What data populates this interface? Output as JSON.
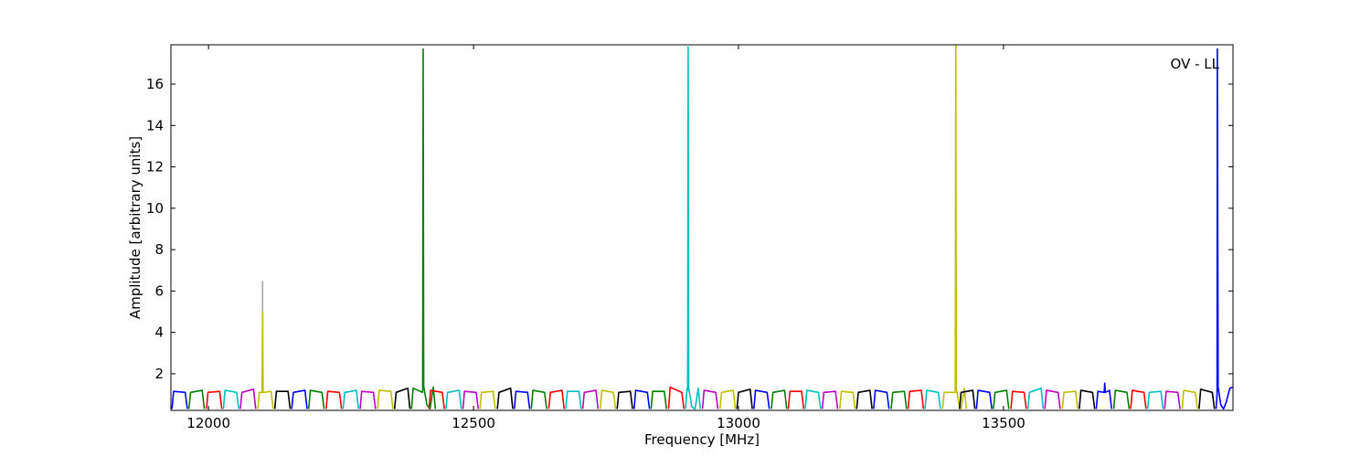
{
  "chart_data": {
    "type": "line",
    "xlabel": "Frequency [MHz]",
    "ylabel": "Amplitude [arbitrary units]",
    "annotation": "OV - LL",
    "xlim": [
      11929,
      13933
    ],
    "ylim": [
      0.23,
      17.9
    ],
    "xticks": [
      12000,
      12500,
      13000,
      13500
    ],
    "yticks": [
      2,
      4,
      6,
      8,
      10,
      12,
      14,
      16
    ],
    "series": [
      {
        "color": "#aaaaaa",
        "x": [
          12102,
          12102
        ],
        "values": [
          1.1,
          6.5
        ]
      },
      {
        "color": "#0000ff",
        "x": [
          11931,
          11934,
          11956,
          11960
        ],
        "values": [
          0.3,
          1.15,
          1.1,
          0.3
        ]
      },
      {
        "color": "#008000",
        "x": [
          11963,
          11966,
          11988,
          11992
        ],
        "values": [
          0.3,
          1.1,
          1.2,
          0.3
        ]
      },
      {
        "color": "#ff0000",
        "x": [
          11996,
          11999,
          12021,
          12025
        ],
        "values": [
          0.3,
          1.1,
          1.15,
          0.3
        ]
      },
      {
        "color": "#00bfbf",
        "x": [
          12028,
          12031,
          12053,
          12057
        ],
        "values": [
          0.3,
          1.2,
          1.1,
          0.3
        ]
      },
      {
        "color": "#bf00bf",
        "x": [
          12060,
          12063,
          12085,
          12089
        ],
        "values": [
          0.3,
          1.1,
          1.25,
          0.3
        ]
      },
      {
        "color": "#bfbf00",
        "x": [
          12093,
          12096,
          12101,
          12102,
          12103,
          12118,
          12122
        ],
        "values": [
          0.3,
          1.1,
          1.1,
          5.0,
          1.1,
          1.15,
          0.3
        ]
      },
      {
        "color": "#000000",
        "x": [
          12125,
          12128,
          12150,
          12154
        ],
        "values": [
          0.3,
          1.15,
          1.15,
          0.3
        ]
      },
      {
        "color": "#0000ff",
        "x": [
          12157,
          12160,
          12182,
          12186
        ],
        "values": [
          0.3,
          1.1,
          1.2,
          0.3
        ]
      },
      {
        "color": "#008000",
        "x": [
          12189,
          12192,
          12214,
          12218
        ],
        "values": [
          0.3,
          1.2,
          1.1,
          0.3
        ]
      },
      {
        "color": "#ff0000",
        "x": [
          12222,
          12225,
          12247,
          12251
        ],
        "values": [
          0.3,
          1.15,
          1.1,
          0.3
        ]
      },
      {
        "color": "#00bfbf",
        "x": [
          12254,
          12257,
          12279,
          12283
        ],
        "values": [
          0.3,
          1.1,
          1.2,
          0.3
        ]
      },
      {
        "color": "#bf00bf",
        "x": [
          12286,
          12289,
          12311,
          12315
        ],
        "values": [
          0.3,
          1.15,
          1.1,
          0.3
        ]
      },
      {
        "color": "#bfbf00",
        "x": [
          12319,
          12322,
          12344,
          12348
        ],
        "values": [
          0.3,
          1.2,
          1.15,
          0.3
        ]
      },
      {
        "color": "#000000",
        "x": [
          12351,
          12354,
          12376,
          12380
        ],
        "values": [
          0.3,
          1.1,
          1.3,
          0.3
        ]
      },
      {
        "color": "#008000",
        "x": [
          12383,
          12386,
          12404,
          12405,
          12406,
          12412,
          12418,
          12424,
          12428
        ],
        "values": [
          0.3,
          1.3,
          1.1,
          17.7,
          1.4,
          0.5,
          0.3,
          1.35,
          0.3
        ]
      },
      {
        "color": "#ff0000",
        "x": [
          12416,
          12419,
          12441,
          12445
        ],
        "values": [
          0.3,
          1.2,
          1.1,
          0.3
        ]
      },
      {
        "color": "#00bfbf",
        "x": [
          12448,
          12451,
          12473,
          12477
        ],
        "values": [
          0.3,
          1.1,
          1.2,
          0.3
        ]
      },
      {
        "color": "#bf00bf",
        "x": [
          12480,
          12483,
          12505,
          12509
        ],
        "values": [
          0.3,
          1.15,
          1.1,
          0.3
        ]
      },
      {
        "color": "#bfbf00",
        "x": [
          12512,
          12515,
          12537,
          12541
        ],
        "values": [
          0.3,
          1.1,
          1.15,
          0.3
        ]
      },
      {
        "color": "#000000",
        "x": [
          12545,
          12548,
          12570,
          12574
        ],
        "values": [
          0.3,
          1.1,
          1.3,
          0.3
        ]
      },
      {
        "color": "#0000ff",
        "x": [
          12577,
          12580,
          12602,
          12606
        ],
        "values": [
          0.3,
          1.15,
          1.1,
          0.3
        ]
      },
      {
        "color": "#008000",
        "x": [
          12609,
          12612,
          12634,
          12638
        ],
        "values": [
          0.3,
          1.2,
          1.1,
          0.3
        ]
      },
      {
        "color": "#ff0000",
        "x": [
          12642,
          12645,
          12667,
          12671
        ],
        "values": [
          0.3,
          1.1,
          1.2,
          0.3
        ]
      },
      {
        "color": "#00bfbf",
        "x": [
          12674,
          12677,
          12699,
          12703
        ],
        "values": [
          0.3,
          1.15,
          1.15,
          0.3
        ]
      },
      {
        "color": "#bf00bf",
        "x": [
          12706,
          12709,
          12731,
          12735
        ],
        "values": [
          0.3,
          1.1,
          1.2,
          0.3
        ]
      },
      {
        "color": "#bfbf00",
        "x": [
          12739,
          12742,
          12764,
          12768
        ],
        "values": [
          0.3,
          1.2,
          1.1,
          0.3
        ]
      },
      {
        "color": "#000000",
        "x": [
          12771,
          12774,
          12796,
          12800
        ],
        "values": [
          0.3,
          1.1,
          1.15,
          0.3
        ]
      },
      {
        "color": "#0000ff",
        "x": [
          12803,
          12806,
          12828,
          12832
        ],
        "values": [
          0.3,
          1.2,
          1.1,
          0.3
        ]
      },
      {
        "color": "#008000",
        "x": [
          12835,
          12838,
          12860,
          12864
        ],
        "values": [
          0.3,
          1.15,
          1.15,
          0.3
        ]
      },
      {
        "color": "#ff0000",
        "x": [
          12868,
          12871,
          12893,
          12897
        ],
        "values": [
          0.3,
          1.35,
          1.1,
          0.3
        ]
      },
      {
        "color": "#00bfbf",
        "x": [
          12900,
          12903,
          12904,
          12905,
          12906,
          12912,
          12918,
          12924,
          12928
        ],
        "values": [
          0.3,
          1.3,
          1.2,
          17.8,
          1.3,
          0.4,
          0.3,
          1.3,
          0.3
        ]
      },
      {
        "color": "#bf00bf",
        "x": [
          12932,
          12935,
          12957,
          12961
        ],
        "values": [
          0.3,
          1.2,
          1.1,
          0.3
        ]
      },
      {
        "color": "#bfbf00",
        "x": [
          12965,
          12968,
          12990,
          12994
        ],
        "values": [
          0.3,
          1.1,
          1.2,
          0.3
        ]
      },
      {
        "color": "#000000",
        "x": [
          12997,
          13000,
          13022,
          13026
        ],
        "values": [
          0.3,
          1.1,
          1.25,
          0.3
        ]
      },
      {
        "color": "#0000ff",
        "x": [
          13029,
          13032,
          13054,
          13058
        ],
        "values": [
          0.3,
          1.2,
          1.1,
          0.3
        ]
      },
      {
        "color": "#008000",
        "x": [
          13062,
          13065,
          13087,
          13091
        ],
        "values": [
          0.3,
          1.1,
          1.2,
          0.3
        ]
      },
      {
        "color": "#ff0000",
        "x": [
          13094,
          13097,
          13119,
          13123
        ],
        "values": [
          0.3,
          1.15,
          1.15,
          0.3
        ]
      },
      {
        "color": "#00bfbf",
        "x": [
          13126,
          13129,
          13151,
          13155
        ],
        "values": [
          0.3,
          1.2,
          1.1,
          0.3
        ]
      },
      {
        "color": "#bf00bf",
        "x": [
          13158,
          13161,
          13183,
          13187
        ],
        "values": [
          0.3,
          1.1,
          1.15,
          0.3
        ]
      },
      {
        "color": "#bfbf00",
        "x": [
          13191,
          13194,
          13216,
          13220
        ],
        "values": [
          0.3,
          1.15,
          1.1,
          0.3
        ]
      },
      {
        "color": "#000000",
        "x": [
          13223,
          13226,
          13248,
          13252
        ],
        "values": [
          0.3,
          1.1,
          1.2,
          0.3
        ]
      },
      {
        "color": "#0000ff",
        "x": [
          13255,
          13258,
          13280,
          13284
        ],
        "values": [
          0.3,
          1.2,
          1.1,
          0.3
        ]
      },
      {
        "color": "#008000",
        "x": [
          13288,
          13291,
          13313,
          13317
        ],
        "values": [
          0.3,
          1.1,
          1.15,
          0.3
        ]
      },
      {
        "color": "#ff0000",
        "x": [
          13320,
          13323,
          13345,
          13349
        ],
        "values": [
          0.3,
          1.15,
          1.2,
          0.3
        ]
      },
      {
        "color": "#00bfbf",
        "x": [
          13352,
          13355,
          13377,
          13381
        ],
        "values": [
          0.3,
          1.2,
          1.1,
          0.3
        ]
      },
      {
        "color": "#bfbf00",
        "x": [
          13385,
          13388,
          13409,
          13410,
          13411,
          13416,
          13420,
          13426,
          13430
        ],
        "values": [
          0.3,
          1.1,
          1.1,
          17.9,
          1.3,
          0.5,
          0.3,
          1.3,
          0.3
        ]
      },
      {
        "color": "#000000",
        "x": [
          13417,
          13420,
          13442,
          13446
        ],
        "values": [
          0.3,
          1.1,
          1.2,
          0.3
        ]
      },
      {
        "color": "#0000ff",
        "x": [
          13449,
          13452,
          13474,
          13478
        ],
        "values": [
          0.3,
          1.2,
          1.1,
          0.3
        ]
      },
      {
        "color": "#008000",
        "x": [
          13481,
          13484,
          13506,
          13510
        ],
        "values": [
          0.3,
          1.1,
          1.2,
          0.3
        ]
      },
      {
        "color": "#ff0000",
        "x": [
          13514,
          13517,
          13539,
          13543
        ],
        "values": [
          0.3,
          1.15,
          1.1,
          0.3
        ]
      },
      {
        "color": "#00bfbf",
        "x": [
          13546,
          13549,
          13571,
          13575
        ],
        "values": [
          0.3,
          1.1,
          1.3,
          0.3
        ]
      },
      {
        "color": "#bf00bf",
        "x": [
          13578,
          13581,
          13603,
          13607
        ],
        "values": [
          0.3,
          1.2,
          1.1,
          0.3
        ]
      },
      {
        "color": "#bfbf00",
        "x": [
          13611,
          13614,
          13636,
          13640
        ],
        "values": [
          0.3,
          1.1,
          1.15,
          0.3
        ]
      },
      {
        "color": "#000000",
        "x": [
          13643,
          13646,
          13668,
          13672
        ],
        "values": [
          0.3,
          1.2,
          1.1,
          0.3
        ]
      },
      {
        "color": "#0000ff",
        "x": [
          13675,
          13678,
          13690,
          13691,
          13692,
          13700,
          13704
        ],
        "values": [
          0.3,
          1.15,
          1.1,
          1.55,
          1.1,
          1.2,
          0.3
        ]
      },
      {
        "color": "#008000",
        "x": [
          13708,
          13711,
          13733,
          13737
        ],
        "values": [
          0.3,
          1.2,
          1.1,
          0.3
        ]
      },
      {
        "color": "#ff0000",
        "x": [
          13740,
          13743,
          13765,
          13769
        ],
        "values": [
          0.3,
          1.2,
          1.1,
          0.3
        ]
      },
      {
        "color": "#00bfbf",
        "x": [
          13772,
          13775,
          13797,
          13801
        ],
        "values": [
          0.3,
          1.1,
          1.15,
          0.3
        ]
      },
      {
        "color": "#bf00bf",
        "x": [
          13804,
          13807,
          13829,
          13833
        ],
        "values": [
          0.3,
          1.15,
          1.1,
          0.3
        ]
      },
      {
        "color": "#bfbf00",
        "x": [
          13837,
          13840,
          13862,
          13866
        ],
        "values": [
          0.3,
          1.2,
          1.1,
          0.3
        ]
      },
      {
        "color": "#000000",
        "x": [
          13869,
          13872,
          13894,
          13898
        ],
        "values": [
          0.3,
          1.25,
          1.1,
          0.3
        ]
      },
      {
        "color": "#0000ff",
        "x": [
          13901,
          13903,
          13903.5,
          13905,
          13910,
          13915,
          13920,
          13927,
          13932
        ],
        "values": [
          0.3,
          1.0,
          17.7,
          1.35,
          0.5,
          0.3,
          0.6,
          1.3,
          1.35
        ]
      }
    ]
  }
}
